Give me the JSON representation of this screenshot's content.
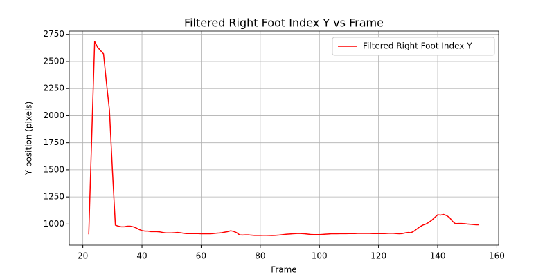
{
  "chart_data": {
    "type": "line",
    "title": "Filtered Right Foot Index Y vs Frame",
    "x_label": "Frame",
    "y_label": "Y position (pixels)",
    "x": [
      22,
      23,
      24,
      25,
      26,
      27,
      28,
      29,
      30,
      31,
      32,
      33,
      34,
      35,
      36,
      37,
      38,
      39,
      40,
      41,
      42,
      43,
      44,
      45,
      46,
      47,
      48,
      49,
      50,
      51,
      52,
      53,
      54,
      55,
      56,
      57,
      58,
      59,
      60,
      61,
      62,
      63,
      64,
      65,
      66,
      67,
      68,
      69,
      70,
      71,
      72,
      73,
      74,
      75,
      76,
      77,
      78,
      79,
      80,
      81,
      82,
      83,
      84,
      85,
      86,
      87,
      88,
      89,
      90,
      91,
      92,
      93,
      94,
      95,
      96,
      97,
      98,
      99,
      100,
      101,
      102,
      103,
      104,
      105,
      106,
      107,
      108,
      109,
      110,
      111,
      112,
      113,
      114,
      115,
      116,
      117,
      118,
      119,
      120,
      121,
      122,
      123,
      124,
      125,
      126,
      127,
      128,
      129,
      130,
      131,
      132,
      133,
      134,
      135,
      136,
      137,
      138,
      139,
      140,
      141,
      142,
      143,
      144,
      145,
      146,
      147,
      148,
      149,
      150,
      151,
      152,
      153,
      154
    ],
    "series": [
      {
        "name": "Filtered Right Foot Index Y",
        "color": "#ff0000",
        "values": [
          905,
          1800,
          2685,
          2630,
          2600,
          2570,
          2300,
          2050,
          1500,
          990,
          980,
          975,
          975,
          980,
          980,
          975,
          965,
          950,
          940,
          935,
          935,
          930,
          930,
          930,
          928,
          922,
          918,
          918,
          918,
          920,
          922,
          920,
          915,
          912,
          912,
          912,
          912,
          912,
          910,
          910,
          910,
          910,
          912,
          915,
          917,
          920,
          925,
          930,
          938,
          932,
          920,
          900,
          898,
          900,
          900,
          897,
          895,
          895,
          895,
          896,
          896,
          895,
          894,
          895,
          897,
          900,
          903,
          906,
          908,
          910,
          912,
          913,
          912,
          910,
          907,
          904,
          902,
          902,
          902,
          904,
          906,
          908,
          910,
          910,
          910,
          911,
          911,
          911,
          912,
          912,
          912,
          913,
          913,
          913,
          913,
          913,
          912,
          912,
          912,
          912,
          912,
          913,
          915,
          914,
          912,
          910,
          912,
          918,
          922,
          920,
          935,
          955,
          975,
          990,
          1000,
          1015,
          1035,
          1060,
          1085,
          1082,
          1088,
          1078,
          1060,
          1025,
          1003,
          1005,
          1005,
          1003,
          1000,
          998,
          995,
          993,
          993
        ]
      }
    ],
    "xlim": [
      15.4,
      160.6
    ],
    "ylim": [
      805,
      2780
    ],
    "xticks": [
      20,
      40,
      60,
      80,
      100,
      120,
      140,
      160
    ],
    "yticks": [
      1000,
      1250,
      1500,
      1750,
      2000,
      2250,
      2500,
      2750
    ],
    "grid": true,
    "legend": "upper right"
  }
}
